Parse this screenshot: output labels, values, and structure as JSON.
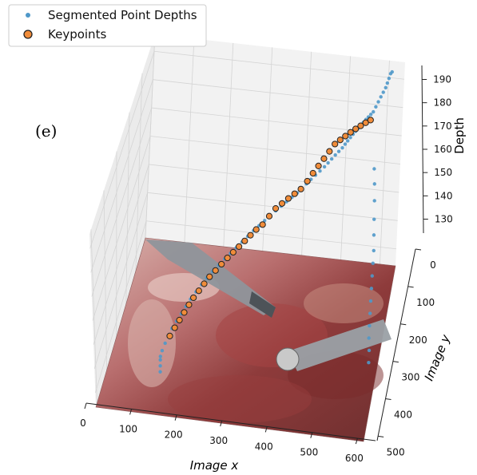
{
  "chart_data": {
    "type": "scatter",
    "projection": "3d",
    "panel_label": "(e)",
    "xlabel": "Image x",
    "ylabel": "Image y",
    "zlabel": "Depth",
    "x_ticks": [
      "0",
      "100",
      "200",
      "300",
      "400",
      "500",
      "600"
    ],
    "y_ticks": [
      "0",
      "100",
      "200",
      "300",
      "400",
      "500"
    ],
    "z_ticks": [
      "130",
      "140",
      "150",
      "160",
      "170",
      "180",
      "190"
    ],
    "xlim": [
      0,
      640
    ],
    "ylim": [
      0,
      512
    ],
    "zlim": [
      124,
      196
    ],
    "grid": true,
    "legend": {
      "placement": "top-left",
      "entries": [
        "Segmented Point Depths",
        "Keypoints"
      ]
    },
    "floor_image": "endoscopic surgical scene with two instruments",
    "colors": {
      "segmented": "#4f98c9",
      "keypoint_fill": "#f08c3a",
      "keypoint_edge": "#222222",
      "pane": "#f2f2f2",
      "grid": "#d4d4d4"
    },
    "series": [
      {
        "name": "Segmented Point Depths",
        "marker": "dot",
        "points": [
          [
            130,
            400,
            126
          ],
          [
            128,
            390,
            127
          ],
          [
            126,
            380,
            128
          ],
          [
            124,
            370,
            128
          ],
          [
            126,
            360,
            129
          ],
          [
            130,
            345,
            130
          ],
          [
            134,
            330,
            131
          ],
          [
            140,
            315,
            132
          ],
          [
            148,
            300,
            133
          ],
          [
            156,
            285,
            134
          ],
          [
            164,
            270,
            135
          ],
          [
            172,
            255,
            136
          ],
          [
            182,
            240,
            137
          ],
          [
            192,
            225,
            138
          ],
          [
            202,
            212,
            139
          ],
          [
            214,
            200,
            140
          ],
          [
            226,
            188,
            141
          ],
          [
            238,
            176,
            142
          ],
          [
            250,
            166,
            143
          ],
          [
            262,
            156,
            144
          ],
          [
            274,
            146,
            145
          ],
          [
            286,
            136,
            146
          ],
          [
            298,
            126,
            147
          ],
          [
            310,
            118,
            148
          ],
          [
            322,
            110,
            149
          ],
          [
            334,
            102,
            150
          ],
          [
            346,
            95,
            151
          ],
          [
            358,
            88,
            152
          ],
          [
            370,
            82,
            153
          ],
          [
            382,
            76,
            154
          ],
          [
            394,
            70,
            155
          ],
          [
            404,
            64,
            156
          ],
          [
            414,
            58,
            157
          ],
          [
            424,
            52,
            158
          ],
          [
            434,
            47,
            159
          ],
          [
            444,
            42,
            160
          ],
          [
            454,
            37,
            161
          ],
          [
            462,
            33,
            162
          ],
          [
            470,
            29,
            163
          ],
          [
            478,
            25,
            164
          ],
          [
            486,
            22,
            165
          ],
          [
            494,
            19,
            166
          ],
          [
            500,
            16,
            167
          ],
          [
            506,
            14,
            168
          ],
          [
            512,
            12,
            169
          ],
          [
            518,
            10,
            170
          ],
          [
            524,
            9,
            171
          ],
          [
            530,
            8,
            172
          ],
          [
            536,
            7,
            173
          ],
          [
            542,
            6,
            174
          ],
          [
            548,
            5,
            175
          ],
          [
            554,
            5,
            176
          ],
          [
            560,
            5,
            177
          ],
          [
            566,
            5,
            178
          ],
          [
            572,
            6,
            180
          ],
          [
            578,
            7,
            182
          ],
          [
            584,
            8,
            184
          ],
          [
            590,
            10,
            186
          ],
          [
            596,
            12,
            188
          ],
          [
            600,
            14,
            190
          ],
          [
            604,
            16,
            192
          ],
          [
            608,
            18,
            194
          ],
          [
            612,
            20,
            195
          ],
          [
            620,
            300,
            126
          ],
          [
            618,
            280,
            128
          ],
          [
            614,
            260,
            130
          ],
          [
            612,
            240,
            132
          ],
          [
            610,
            220,
            134
          ],
          [
            608,
            200,
            136
          ],
          [
            606,
            180,
            138
          ],
          [
            604,
            160,
            140
          ],
          [
            602,
            140,
            142
          ],
          [
            600,
            120,
            144
          ],
          [
            596,
            100,
            147
          ],
          [
            592,
            80,
            150
          ],
          [
            588,
            60,
            154
          ],
          [
            584,
            45,
            158
          ],
          [
            580,
            35,
            162
          ]
        ]
      },
      {
        "name": "Keypoints",
        "marker": "circle",
        "points": [
          [
            138,
            330,
            131
          ],
          [
            146,
            312,
            132
          ],
          [
            154,
            296,
            133
          ],
          [
            162,
            280,
            134
          ],
          [
            170,
            264,
            135
          ],
          [
            178,
            250,
            136
          ],
          [
            188,
            236,
            137
          ],
          [
            198,
            222,
            138
          ],
          [
            208,
            208,
            139
          ],
          [
            220,
            196,
            140
          ],
          [
            232,
            184,
            141
          ],
          [
            244,
            172,
            142
          ],
          [
            256,
            162,
            143
          ],
          [
            268,
            152,
            144
          ],
          [
            280,
            142,
            145
          ],
          [
            292,
            132,
            146
          ],
          [
            304,
            122,
            147
          ],
          [
            318,
            114,
            148
          ],
          [
            332,
            104,
            150
          ],
          [
            346,
            96,
            152
          ],
          [
            360,
            88,
            153
          ],
          [
            374,
            80,
            154
          ],
          [
            388,
            73,
            155
          ],
          [
            402,
            66,
            156
          ],
          [
            416,
            58,
            158
          ],
          [
            428,
            50,
            160
          ],
          [
            440,
            44,
            162
          ],
          [
            452,
            38,
            164
          ],
          [
            464,
            32,
            166
          ],
          [
            476,
            26,
            168
          ],
          [
            488,
            21,
            169
          ],
          [
            500,
            17,
            170
          ],
          [
            512,
            13,
            171
          ],
          [
            524,
            10,
            172
          ],
          [
            536,
            8,
            173
          ],
          [
            548,
            6,
            174
          ],
          [
            560,
            5,
            175
          ]
        ]
      }
    ]
  }
}
